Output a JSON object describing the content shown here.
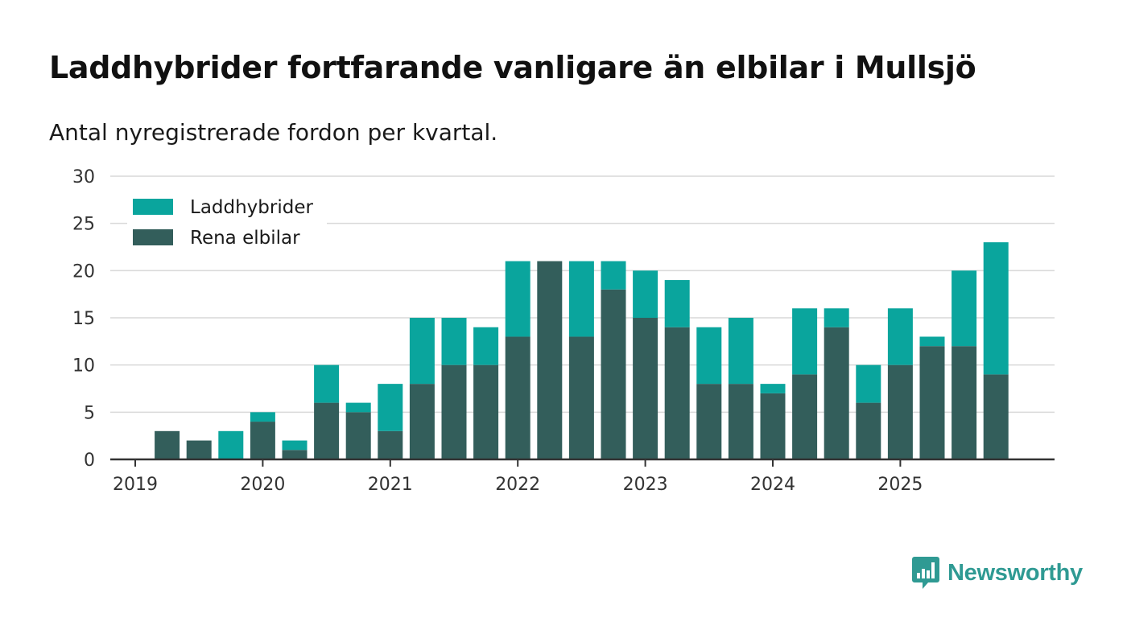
{
  "title": "Laddhybrider fortfarande vanligare än elbilar i Mullsjö",
  "subtitle": "Antal nyregistrerade fordon per kvartal.",
  "brand": {
    "name": "Newsworthy",
    "color": "#2f9a93",
    "icon": "newsworthy-logo-icon"
  },
  "chart_data": {
    "type": "bar",
    "stacked": true,
    "title": "Laddhybrider fortfarande vanligare än elbilar i Mullsjö",
    "subtitle": "Antal nyregistrerade fordon per kvartal.",
    "xlabel": "",
    "ylabel": "",
    "ylim": [
      0,
      30
    ],
    "yticks": [
      0,
      5,
      10,
      15,
      20,
      25,
      30
    ],
    "grid": true,
    "legend_position": "top-left",
    "year_labels": [
      "2019",
      "2020",
      "2021",
      "2022",
      "2023",
      "2024",
      "2025"
    ],
    "categories": [
      "2019 Q1",
      "2019 Q2",
      "2019 Q3",
      "2019 Q4",
      "2020 Q1",
      "2020 Q2",
      "2020 Q3",
      "2020 Q4",
      "2021 Q1",
      "2021 Q2",
      "2021 Q3",
      "2021 Q4",
      "2022 Q1",
      "2022 Q2",
      "2022 Q3",
      "2022 Q4",
      "2023 Q1",
      "2023 Q2",
      "2023 Q3",
      "2023 Q4",
      "2024 Q1",
      "2024 Q2",
      "2024 Q3",
      "2024 Q4",
      "2025 Q1",
      "2025 Q2",
      "2025 Q3",
      "2025 Q4"
    ],
    "series": [
      {
        "name": "Rena elbilar",
        "color": "#335e5b",
        "values": [
          0,
          3,
          2,
          0,
          4,
          1,
          6,
          5,
          3,
          8,
          10,
          10,
          13,
          21,
          13,
          18,
          15,
          14,
          8,
          8,
          7,
          9,
          14,
          6,
          10,
          12,
          12,
          9
        ]
      },
      {
        "name": "Laddhybrider",
        "color": "#0aa59d",
        "values": [
          0,
          0,
          0,
          3,
          1,
          1,
          4,
          1,
          5,
          7,
          5,
          4,
          8,
          0,
          8,
          3,
          5,
          5,
          6,
          7,
          1,
          7,
          2,
          4,
          6,
          1,
          8,
          14
        ]
      }
    ],
    "legend": [
      "Laddhybrider",
      "Rena elbilar"
    ]
  }
}
